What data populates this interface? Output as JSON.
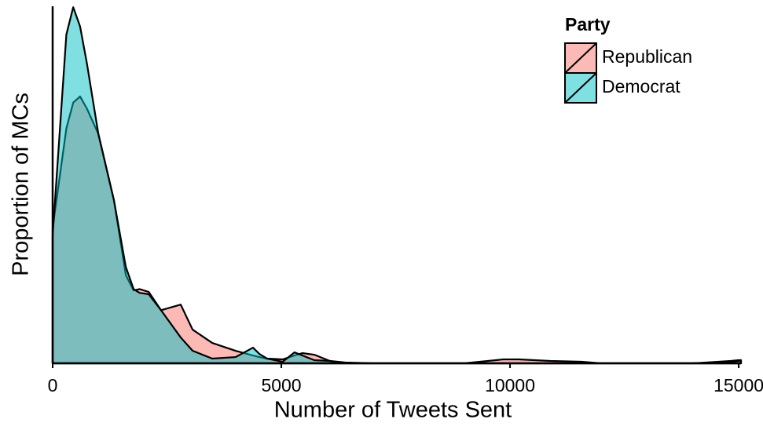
{
  "chart_data": {
    "type": "area",
    "x_label": "Number of Tweets Sent",
    "y_label": "Proportion of MCs",
    "legend_title": "Party",
    "legend_position": "top-right",
    "x": [
      0,
      300,
      450,
      600,
      750,
      1000,
      1340,
      1600,
      1770,
      1900,
      2100,
      2370,
      2800,
      3060,
      3490,
      4000,
      4380,
      4520,
      4690,
      5030,
      5290,
      5460,
      5720,
      6060,
      6400,
      7000,
      8000,
      9000,
      9850,
      10190,
      10880,
      11560,
      12000,
      13000,
      14000,
      14830,
      15000,
      15050
    ],
    "series": [
      {
        "name": "Republican",
        "color": "#f8766d",
        "values": [
          0.000288,
          0.0005,
          0.000555,
          0.000568,
          0.000542,
          0.000488,
          0.000347,
          0.000188,
          0.000155,
          0.000158,
          0.000152,
          0.000113,
          0.000125,
          7.17e-05,
          4.33e-05,
          2.67e-05,
          1.67e-05,
          1.33e-05,
          1e-05,
          8.3e-06,
          1.67e-05,
          2.17e-05,
          1.83e-05,
          5e-06,
          1.7e-06,
          0,
          0,
          0,
          8.3e-06,
          8.3e-06,
          5e-06,
          3.3e-06,
          0,
          0,
          0,
          5e-06,
          6.7e-06,
          6.7e-06
        ]
      },
      {
        "name": "Democrat",
        "color": "#00bfc4",
        "values": [
          0.000272,
          0.0007,
          0.000758,
          0.000717,
          0.000638,
          0.000488,
          0.000347,
          0.000205,
          0.000158,
          0.00015,
          0.000147,
          0.000113,
          5.5e-05,
          2.67e-05,
          1e-05,
          1.33e-05,
          3.33e-05,
          2e-05,
          1e-05,
          3.3e-06,
          2.33e-05,
          1.67e-05,
          6.7e-06,
          5e-06,
          0,
          0,
          0,
          0,
          0,
          0,
          0,
          0,
          0,
          0,
          0,
          3.3e-06,
          5e-06,
          5e-06
        ]
      }
    ],
    "xlim": [
      0,
      15050
    ],
    "ylim": [
      0,
      0.00076
    ],
    "xticks": [
      0,
      5000,
      10000,
      15000
    ]
  }
}
